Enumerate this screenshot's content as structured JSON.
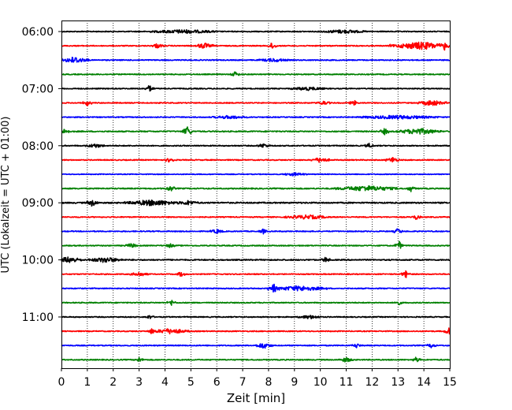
{
  "chart_data": {
    "type": "line",
    "title": "",
    "xlabel": "Zeit  [min]",
    "ylabel": "UTC (Lokalzeit = UTC + 01:00)",
    "xlim": [
      0,
      15
    ],
    "x_ticks": [
      "0",
      "1",
      "2",
      "3",
      "4",
      "5",
      "6",
      "7",
      "8",
      "9",
      "10",
      "11",
      "12",
      "13",
      "14",
      "15"
    ],
    "vertical_grid": "dotted",
    "y_tick_labels": [
      "06:00",
      "07:00",
      "08:00",
      "09:00",
      "10:00",
      "11:00"
    ],
    "trace_colors": [
      "#000000",
      "#ff0000",
      "#0000ff",
      "#008000"
    ],
    "traces": [
      {
        "start": "06:00",
        "color": "#000000",
        "noise": 0.6,
        "bursts": [
          [
            4.7,
            1.2,
            1.6
          ],
          [
            10.9,
            0.8,
            1.5
          ]
        ]
      },
      {
        "start": "06:15",
        "color": "#ff0000",
        "noise": 0.6,
        "bursts": [
          [
            3.7,
            0.2,
            2.2
          ],
          [
            5.5,
            0.3,
            3.0
          ],
          [
            8.15,
            0.1,
            4.5
          ],
          [
            13.9,
            1.2,
            4.0
          ],
          [
            14.8,
            0.1,
            5.0
          ]
        ]
      },
      {
        "start": "06:30",
        "color": "#0000ff",
        "noise": 0.6,
        "bursts": [
          [
            0.5,
            0.5,
            3.5
          ],
          [
            8.2,
            0.5,
            1.4
          ]
        ]
      },
      {
        "start": "06:45",
        "color": "#008000",
        "noise": 0.6,
        "bursts": [
          [
            6.7,
            0.1,
            3.0
          ]
        ]
      },
      {
        "start": "07:00",
        "color": "#000000",
        "noise": 0.6,
        "bursts": [
          [
            3.4,
            0.1,
            4.0
          ],
          [
            9.5,
            0.6,
            1.4
          ]
        ]
      },
      {
        "start": "07:15",
        "color": "#ff0000",
        "noise": 0.6,
        "bursts": [
          [
            1.0,
            0.1,
            3.0
          ],
          [
            10.1,
            0.2,
            2.0
          ],
          [
            11.3,
            0.1,
            3.0
          ],
          [
            14.3,
            0.5,
            2.8
          ]
        ]
      },
      {
        "start": "07:30",
        "color": "#0000ff",
        "noise": 0.6,
        "bursts": [
          [
            6.5,
            0.6,
            1.3
          ],
          [
            13.0,
            1.5,
            1.5
          ]
        ]
      },
      {
        "start": "07:45",
        "color": "#008000",
        "noise": 0.7,
        "bursts": [
          [
            0.15,
            0.1,
            4.0
          ],
          [
            4.85,
            0.1,
            7.0
          ],
          [
            12.5,
            0.1,
            4.0
          ],
          [
            13.8,
            0.8,
            3.0
          ]
        ]
      },
      {
        "start": "08:00",
        "color": "#000000",
        "noise": 0.6,
        "bursts": [
          [
            1.3,
            0.3,
            1.8
          ],
          [
            7.8,
            0.2,
            2.0
          ],
          [
            11.9,
            0.1,
            3.0
          ]
        ]
      },
      {
        "start": "08:15",
        "color": "#ff0000",
        "noise": 0.6,
        "bursts": [
          [
            4.2,
            0.1,
            4.0
          ],
          [
            10.0,
            0.3,
            2.5
          ],
          [
            12.8,
            0.2,
            3.0
          ]
        ]
      },
      {
        "start": "08:30",
        "color": "#0000ff",
        "noise": 0.5,
        "bursts": [
          [
            9.0,
            0.4,
            1.3
          ]
        ]
      },
      {
        "start": "08:45",
        "color": "#008000",
        "noise": 0.7,
        "bursts": [
          [
            4.2,
            0.1,
            4.0
          ],
          [
            11.8,
            1.2,
            2.5
          ],
          [
            13.5,
            0.1,
            3.5
          ]
        ]
      },
      {
        "start": "09:00",
        "color": "#000000",
        "noise": 0.8,
        "bursts": [
          [
            1.2,
            0.15,
            4.0
          ],
          [
            3.5,
            1.0,
            2.8
          ],
          [
            4.9,
            0.3,
            2.0
          ]
        ]
      },
      {
        "start": "09:15",
        "color": "#ff0000",
        "noise": 0.6,
        "bursts": [
          [
            9.5,
            0.8,
            1.8
          ],
          [
            13.7,
            0.1,
            3.0
          ]
        ]
      },
      {
        "start": "09:30",
        "color": "#0000ff",
        "noise": 0.6,
        "bursts": [
          [
            6.0,
            0.2,
            2.0
          ],
          [
            7.8,
            0.1,
            2.5
          ],
          [
            13.0,
            0.1,
            4.0
          ]
        ]
      },
      {
        "start": "09:45",
        "color": "#008000",
        "noise": 0.6,
        "bursts": [
          [
            2.7,
            0.2,
            2.0
          ],
          [
            4.2,
            0.1,
            2.5
          ],
          [
            13.05,
            0.1,
            5.0
          ]
        ]
      },
      {
        "start": "10:00",
        "color": "#000000",
        "noise": 0.7,
        "bursts": [
          [
            0.3,
            0.5,
            3.0
          ],
          [
            1.7,
            0.6,
            2.5
          ],
          [
            10.2,
            0.1,
            3.0
          ]
        ]
      },
      {
        "start": "10:15",
        "color": "#ff0000",
        "noise": 0.6,
        "bursts": [
          [
            3.0,
            0.3,
            2.0
          ],
          [
            4.6,
            0.1,
            3.0
          ],
          [
            13.3,
            0.1,
            4.0
          ]
        ]
      },
      {
        "start": "10:30",
        "color": "#0000ff",
        "noise": 0.6,
        "bursts": [
          [
            8.2,
            0.15,
            5.0
          ],
          [
            9.2,
            1.0,
            2.5
          ]
        ]
      },
      {
        "start": "10:45",
        "color": "#008000",
        "noise": 0.6,
        "bursts": [
          [
            4.25,
            0.1,
            3.0
          ],
          [
            13.0,
            0.1,
            3.0
          ]
        ]
      },
      {
        "start": "11:00",
        "color": "#000000",
        "noise": 0.6,
        "bursts": [
          [
            3.4,
            0.1,
            2.0
          ],
          [
            9.6,
            0.4,
            1.5
          ]
        ]
      },
      {
        "start": "11:15",
        "color": "#ff0000",
        "noise": 0.6,
        "bursts": [
          [
            3.5,
            0.1,
            3.5
          ],
          [
            4.2,
            0.7,
            2.5
          ],
          [
            14.95,
            0.1,
            4.5
          ]
        ]
      },
      {
        "start": "11:30",
        "color": "#0000ff",
        "noise": 0.6,
        "bursts": [
          [
            7.8,
            0.3,
            3.0
          ],
          [
            11.4,
            0.1,
            2.5
          ],
          [
            14.3,
            0.1,
            3.0
          ]
        ]
      },
      {
        "start": "11:45",
        "color": "#008000",
        "noise": 0.6,
        "bursts": [
          [
            3.0,
            0.1,
            2.5
          ],
          [
            11.0,
            0.2,
            2.5
          ],
          [
            13.7,
            0.1,
            3.0
          ]
        ]
      }
    ]
  }
}
